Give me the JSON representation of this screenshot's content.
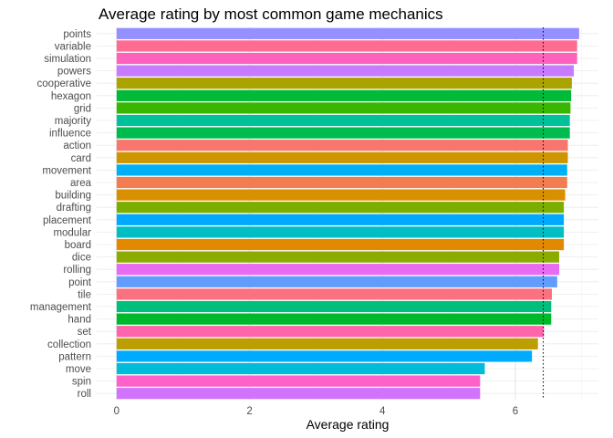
{
  "chart_data": {
    "type": "bar",
    "orientation": "horizontal",
    "title": "Average rating by most common game mechanics",
    "xlabel": "Average rating",
    "ylabel": "",
    "xlim": [
      -0.3,
      7.25
    ],
    "xticks": [
      0,
      2,
      4,
      6
    ],
    "grid": true,
    "legend": "none",
    "reference_line": {
      "x": 6.42,
      "style": "dotted"
    },
    "categories": [
      "points",
      "variable",
      "simulation",
      "powers",
      "cooperative",
      "hexagon",
      "grid",
      "majority",
      "influence",
      "action",
      "card",
      "movement",
      "area",
      "building",
      "drafting",
      "placement",
      "modular",
      "board",
      "dice",
      "rolling",
      "point",
      "tile",
      "management",
      "hand",
      "set",
      "collection",
      "pattern",
      "move",
      "spin",
      "roll"
    ],
    "values": [
      6.96,
      6.93,
      6.93,
      6.88,
      6.85,
      6.84,
      6.83,
      6.82,
      6.82,
      6.79,
      6.79,
      6.78,
      6.78,
      6.75,
      6.73,
      6.73,
      6.73,
      6.73,
      6.66,
      6.66,
      6.63,
      6.55,
      6.54,
      6.54,
      6.43,
      6.34,
      6.25,
      5.54,
      5.47,
      5.47
    ],
    "colors": [
      "#9590FF",
      "#FF6C91",
      "#FF62BC",
      "#C77CFF",
      "#ABA300",
      "#00BA38",
      "#39B600",
      "#00C19A",
      "#00BB4E",
      "#F8766D",
      "#CD9600",
      "#00B0F6",
      "#F17D50",
      "#D89000",
      "#7CAE00",
      "#00A9FF",
      "#00BFC4",
      "#E38900",
      "#8CAB00",
      "#E76BF3",
      "#619CFF",
      "#FC717F",
      "#00BF7D",
      "#00B82C",
      "#FF65AD",
      "#BC9E00",
      "#00ABFD",
      "#00BCD8",
      "#FF61C9",
      "#D274FB"
    ]
  }
}
